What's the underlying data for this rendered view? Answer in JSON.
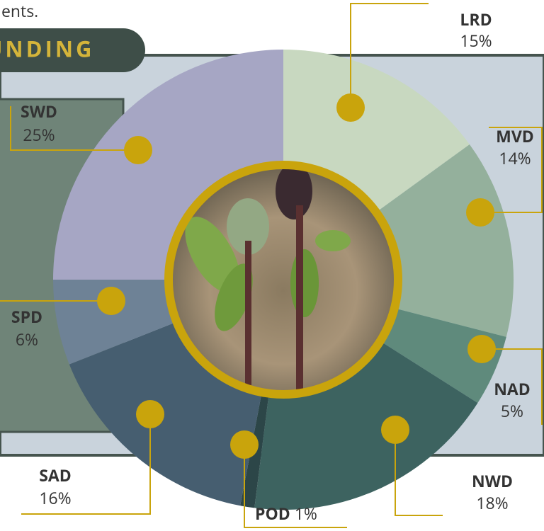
{
  "chart_data": {
    "type": "pie",
    "subtitle": "ents.",
    "title": "UNDING",
    "categories": [
      "LRD",
      "MVD",
      "NAD",
      "NWD",
      "POD",
      "SAD",
      "SPD",
      "SWD"
    ],
    "values": [
      15,
      14,
      5,
      18,
      1,
      16,
      6,
      25
    ],
    "value_labels": [
      "15%",
      "14%",
      "5%",
      "18%",
      "1%",
      "16%",
      "6%",
      "25%"
    ],
    "colors": [
      "#c8d8c0",
      "#94b09c",
      "#5f8a7c",
      "#3d6360",
      "#2c4648",
      "#465e70",
      "#6e8296",
      "#a6a6c4"
    ]
  }
}
